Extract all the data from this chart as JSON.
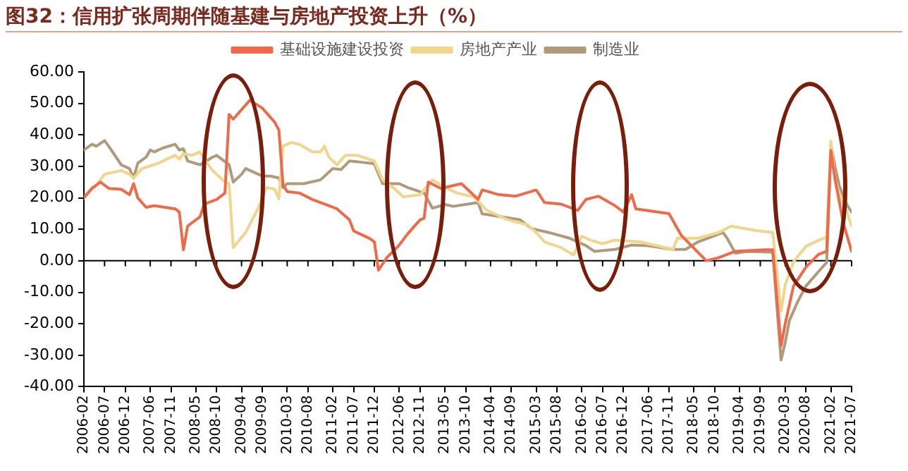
{
  "chart_data": {
    "type": "line",
    "title": "图32：信用扩张周期伴随基建与房地产投资上升（%）",
    "xlim": [
      "2006-02",
      "2021-07"
    ],
    "xticks": [
      "2006-02",
      "2006-07",
      "2006-12",
      "2007-06",
      "2007-11",
      "2008-05",
      "2008-10",
      "2009-04",
      "2009-09",
      "2010-03",
      "2010-08",
      "2011-02",
      "2011-07",
      "2011-12",
      "2012-06",
      "2012-11",
      "2013-05",
      "2013-10",
      "2014-04",
      "2014-09",
      "2015-03",
      "2015-08",
      "2016-02",
      "2016-07",
      "2016-12",
      "2017-06",
      "2017-11",
      "2018-05",
      "2018-10",
      "2019-04",
      "2019-09",
      "2020-03",
      "2020-08",
      "2021-02",
      "2021-07"
    ],
    "ylim": [
      -40,
      60
    ],
    "yticks": [
      {
        "value": -40,
        "label": "-40.00"
      },
      {
        "value": -30,
        "label": "-30.00"
      },
      {
        "value": -20,
        "label": "-20.00"
      },
      {
        "value": -10,
        "label": "-10.00"
      },
      {
        "value": 0,
        "label": "0.00"
      },
      {
        "value": 10,
        "label": "10.00"
      },
      {
        "value": 20,
        "label": "20.00"
      },
      {
        "value": 30,
        "label": "30.00"
      },
      {
        "value": 40,
        "label": "40.00"
      },
      {
        "value": 50,
        "label": "50.00"
      },
      {
        "value": 60,
        "label": "60.00"
      }
    ],
    "legend": "top",
    "series": [
      {
        "name": "基础设施建设投资",
        "color": "#ee6a4a",
        "x": [
          "2006-02",
          "2006-04",
          "2006-06",
          "2006-08",
          "2006-11",
          "2007-01",
          "2007-02",
          "2007-03",
          "2007-05",
          "2007-07",
          "2007-12",
          "2008-01",
          "2008-02",
          "2008-03",
          "2008-06",
          "2008-07",
          "2008-10",
          "2008-12",
          "2009-01",
          "2009-02",
          "2009-03",
          "2009-06",
          "2009-09",
          "2009-12",
          "2010-01",
          "2010-02",
          "2010-03",
          "2010-06",
          "2010-09",
          "2011-01",
          "2011-03",
          "2011-06",
          "2011-07",
          "2011-11",
          "2011-12",
          "2012-01",
          "2012-03",
          "2012-06",
          "2012-08",
          "2012-11",
          "2012-12",
          "2013-01",
          "2013-04",
          "2013-09",
          "2014-01",
          "2014-02",
          "2014-06",
          "2014-10",
          "2015-03",
          "2015-05",
          "2015-09",
          "2016-01",
          "2016-03",
          "2016-06",
          "2016-10",
          "2016-12",
          "2017-02",
          "2017-03",
          "2017-11",
          "2018-02",
          "2018-08",
          "2018-11",
          "2019-03",
          "2019-10",
          "2019-12",
          "2020-02",
          "2020-03",
          "2020-05",
          "2020-08",
          "2020-11",
          "2021-01",
          "2021-02",
          "2021-03",
          "2021-05",
          "2021-07"
        ],
        "values": [
          20,
          23,
          25,
          23,
          22.7,
          21,
          24.5,
          20,
          17,
          17.5,
          16.5,
          15.5,
          3.5,
          11,
          14,
          18,
          19.5,
          21.5,
          46.5,
          45,
          46.5,
          51,
          48.5,
          44,
          41.5,
          24,
          22,
          21.5,
          19.5,
          17.5,
          16.5,
          13,
          9.5,
          7,
          6,
          -3,
          1,
          5,
          8.5,
          13,
          13.5,
          25,
          23,
          24.5,
          19.5,
          22.5,
          21,
          20.5,
          22.5,
          18.5,
          18,
          16,
          19.5,
          20.5,
          17.5,
          15.5,
          21,
          16.5,
          15,
          8,
          0,
          1,
          3,
          3.5,
          3.5,
          -27,
          -20,
          -8,
          -2,
          2,
          3,
          35,
          26,
          12,
          3
        ]
      },
      {
        "name": "房地产产业",
        "color": "#f0d68c",
        "x": [
          "2006-02",
          "2006-04",
          "2006-05",
          "2006-07",
          "2006-11",
          "2007-01",
          "2007-02",
          "2007-04",
          "2007-08",
          "2007-10",
          "2007-12",
          "2008-01",
          "2008-02",
          "2008-04",
          "2008-06",
          "2008-07",
          "2008-09",
          "2008-12",
          "2009-01",
          "2009-02",
          "2009-05",
          "2009-08",
          "2009-10",
          "2009-12",
          "2010-01",
          "2010-02",
          "2010-04",
          "2010-06",
          "2010-09",
          "2010-11",
          "2010-12",
          "2011-01",
          "2011-03",
          "2011-05",
          "2011-08",
          "2011-09",
          "2011-12",
          "2012-02",
          "2012-05",
          "2012-07",
          "2012-11",
          "2013-02",
          "2013-05",
          "2013-08",
          "2013-12",
          "2014-03",
          "2014-08",
          "2015-01",
          "2015-03",
          "2015-05",
          "2015-09",
          "2015-12",
          "2016-02",
          "2016-04",
          "2016-07",
          "2016-10",
          "2017-04",
          "2017-12",
          "2018-01",
          "2018-06",
          "2018-11",
          "2019-02",
          "2019-08",
          "2019-12",
          "2020-02",
          "2020-03",
          "2020-05",
          "2020-08",
          "2020-11",
          "2021-01",
          "2021-02",
          "2021-03",
          "2021-04",
          "2021-05",
          "2021-06",
          "2021-07"
        ],
        "values": [
          20,
          23.3,
          24,
          27.5,
          28.7,
          27.5,
          26.3,
          29.3,
          31,
          32.3,
          33.5,
          32.3,
          34,
          33.5,
          34.6,
          32.3,
          28.7,
          25,
          24.5,
          4.2,
          9,
          16.7,
          23.3,
          22.7,
          19.7,
          36.4,
          37.6,
          37,
          34.6,
          34.6,
          36.4,
          33,
          30.5,
          33.5,
          33.5,
          33,
          31.7,
          25.7,
          22.7,
          20.3,
          21,
          25.7,
          23.3,
          21.5,
          20.3,
          16.1,
          13.1,
          11.4,
          9,
          6,
          4.2,
          1.8,
          7.8,
          6.6,
          5.4,
          6.6,
          6,
          3.6,
          7.2,
          7.2,
          9,
          11,
          9.6,
          9,
          -16,
          -7.7,
          -0.3,
          4.6,
          6.5,
          7.5,
          38,
          26,
          21.5,
          18,
          15,
          11
        ]
      },
      {
        "name": "制造业",
        "color": "#b09a7c",
        "x": [
          "2006-02",
          "2006-04",
          "2006-05",
          "2006-07",
          "2006-08",
          "2006-11",
          "2007-01",
          "2007-02",
          "2007-03",
          "2007-05",
          "2007-06",
          "2007-07",
          "2007-09",
          "2007-12",
          "2008-01",
          "2008-02",
          "2008-03",
          "2008-06",
          "2008-09",
          "2008-10",
          "2009-01",
          "2009-02",
          "2009-04",
          "2009-05",
          "2009-07",
          "2009-09",
          "2009-11",
          "2010-01",
          "2010-02",
          "2010-03",
          "2010-07",
          "2010-11",
          "2011-02",
          "2011-04",
          "2011-06",
          "2011-09",
          "2011-12",
          "2012-02",
          "2012-06",
          "2012-08",
          "2012-12",
          "2013-02",
          "2013-05",
          "2013-07",
          "2014-01",
          "2014-02",
          "2014-08",
          "2014-11",
          "2015-02",
          "2015-06",
          "2015-11",
          "2016-03",
          "2016-05",
          "2016-10",
          "2017-02",
          "2017-06",
          "2017-12",
          "2018-03",
          "2018-06",
          "2018-12",
          "2019-01",
          "2019-03",
          "2019-06",
          "2019-12",
          "2020-02",
          "2020-03",
          "2020-04",
          "2020-06",
          "2020-08",
          "2020-10",
          "2020-12",
          "2021-01",
          "2021-02",
          "2021-03",
          "2021-04",
          "2021-05",
          "2021-06",
          "2021-07"
        ],
        "values": [
          35.2,
          37,
          36.4,
          38.2,
          36.4,
          30.5,
          29.3,
          26.3,
          31,
          32.9,
          35.2,
          34.6,
          35.8,
          37,
          35.2,
          35.6,
          31.7,
          30.5,
          32.9,
          33.5,
          30.5,
          25,
          27.5,
          29.3,
          28.1,
          26.9,
          26.9,
          26.3,
          23.3,
          24.5,
          24.5,
          25.7,
          29.3,
          29,
          31.7,
          31.3,
          30.8,
          24.5,
          24.5,
          23.3,
          21.5,
          16.7,
          17.9,
          17.3,
          18.5,
          14.9,
          13.7,
          13.1,
          10.2,
          9,
          7.2,
          4.8,
          3,
          3.6,
          5,
          4.8,
          3.6,
          3.6,
          6,
          9,
          7.2,
          2.4,
          3,
          2.7,
          -31.5,
          -26,
          -19,
          -13,
          -8,
          -5,
          -2,
          -0.5,
          37,
          30,
          24,
          20.5,
          17.5,
          15.5
        ]
      }
    ]
  }
}
